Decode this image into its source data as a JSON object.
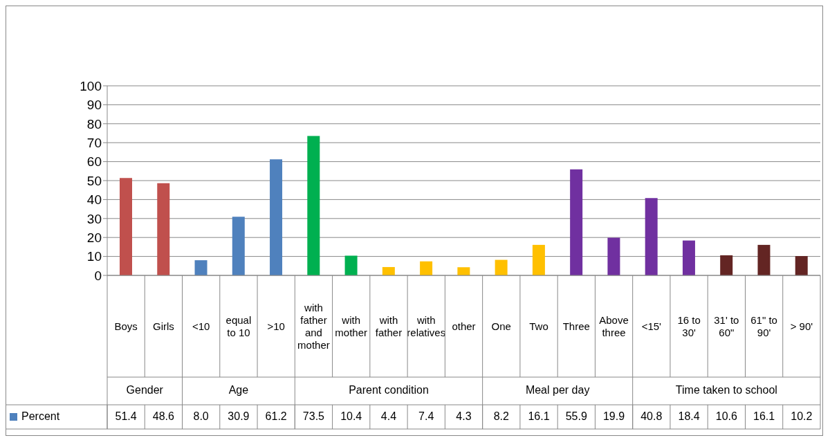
{
  "chart_data": {
    "type": "bar",
    "categories": [
      "Boys",
      "Girls",
      "<10",
      "equal to 10",
      ">10",
      "with father and mother",
      "with mother",
      "with father",
      "with relatives",
      "other",
      "One",
      "Two",
      "Three",
      "Above three",
      "<15'",
      "16 to 30'",
      "31' to 60\"",
      "61\" to 90'",
      "> 90'"
    ],
    "series": [
      {
        "name": "Percent",
        "color": "#4f81bd",
        "values": [
          51.4,
          48.6,
          8.0,
          30.9,
          61.2,
          73.5,
          10.4,
          4.4,
          7.4,
          4.3,
          8.2,
          16.1,
          55.9,
          19.9,
          40.8,
          18.4,
          10.6,
          16.1,
          10.2
        ],
        "colors": [
          "#c0504d",
          "#c0504d",
          "#4f81bd",
          "#4f81bd",
          "#4f81bd",
          "#00b050",
          "#00b050",
          "#ffc000",
          "#ffc000",
          "#ffc000",
          "#ffc000",
          "#ffc000",
          "#7030a0",
          "#7030a0",
          "#7030a0",
          "#7030a0",
          "#632523",
          "#632523",
          "#632523"
        ],
        "value_labels": [
          "51.4",
          "48.6",
          "8.0",
          "30.9",
          "61.2",
          "73.5",
          "10.4",
          "4.4",
          "7.4",
          "4.3",
          "8.2",
          "16.1",
          "55.9",
          "19.9",
          "40.8",
          "18.4",
          "10.6",
          "16.1",
          "10.2"
        ]
      }
    ],
    "annotations": [
      "Gender",
      "Age",
      "Parent condition",
      "Meal per day",
      "Time taken to school"
    ],
    "ylim": [
      0,
      100
    ],
    "yticks": [
      0,
      10,
      20,
      30,
      40,
      50,
      60,
      70,
      80,
      90,
      100
    ],
    "grid": "y",
    "legend": "bottom left"
  }
}
